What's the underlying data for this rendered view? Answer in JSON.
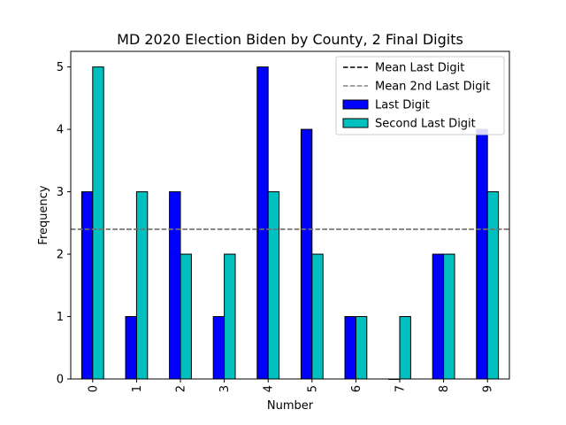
{
  "chart_data": {
    "type": "bar",
    "title": "MD 2020 Election Biden by County, 2 Final Digits",
    "xlabel": "Number",
    "ylabel": "Frequency",
    "categories": [
      "0",
      "1",
      "2",
      "3",
      "4",
      "5",
      "6",
      "7",
      "8",
      "9"
    ],
    "series": [
      {
        "name": "Last Digit",
        "values": [
          3,
          1,
          3,
          1,
          5,
          4,
          1,
          0,
          2,
          4
        ],
        "color": "#0000ff"
      },
      {
        "name": "Second Last Digit",
        "values": [
          5,
          3,
          2,
          2,
          3,
          2,
          1,
          1,
          2,
          3
        ],
        "color": "#00bfbf"
      }
    ],
    "reference_lines": [
      {
        "name": "Mean Last Digit",
        "value": 2.4,
        "color": "#000000",
        "style": "dashed"
      },
      {
        "name": "Mean 2nd Last Digit",
        "value": 2.4,
        "color": "#808080",
        "style": "dashed"
      }
    ],
    "ylim": [
      0,
      5.25
    ],
    "yticks": [
      0,
      1,
      2,
      3,
      4,
      5
    ],
    "grid": false,
    "legend_position": "top-right",
    "xtick_rotation": 90
  }
}
